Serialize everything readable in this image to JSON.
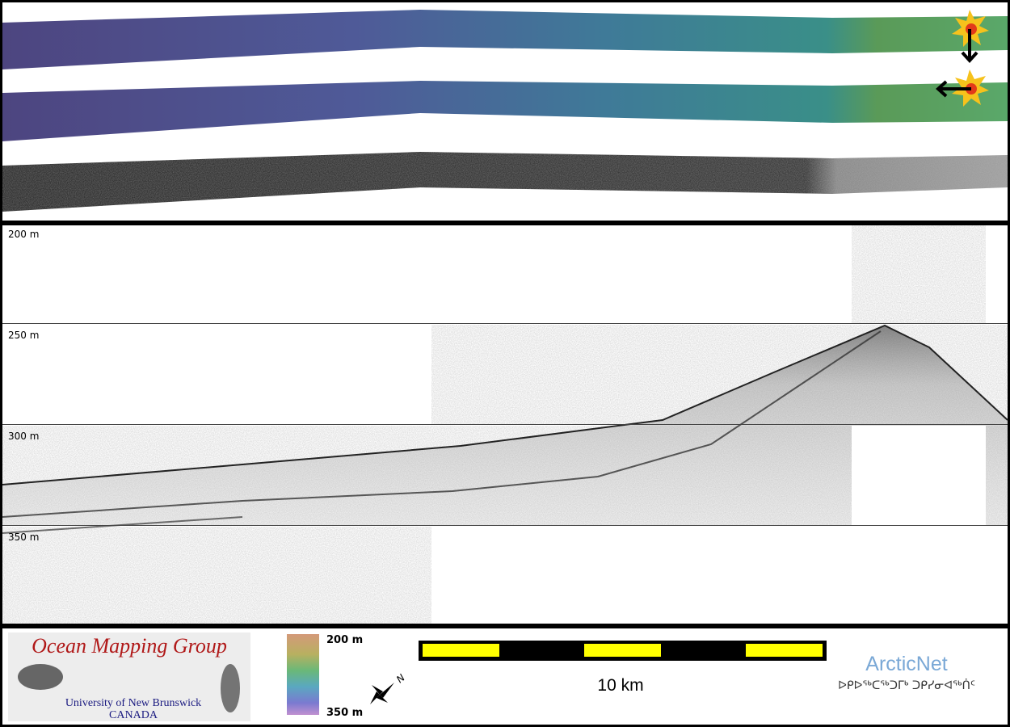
{
  "profile": {
    "depth_labels": [
      "200 m",
      "250 m",
      "300 m",
      "350 m"
    ]
  },
  "legend": {
    "logo": {
      "title": "Ocean Mapping Group",
      "institution": "University of New Brunswick",
      "country": "CANADA"
    },
    "color_bar": {
      "top": "200 m",
      "bottom": "350 m"
    },
    "north": "N",
    "scale_bar": "10 km",
    "partner": {
      "name": "ArcticNet",
      "name_inuktitut": "ᐅᑭᐅᖅᑕᖅᑐᒥᒃ ᑐᑭᓯᓂᐊᖅᑏᑦ"
    }
  }
}
